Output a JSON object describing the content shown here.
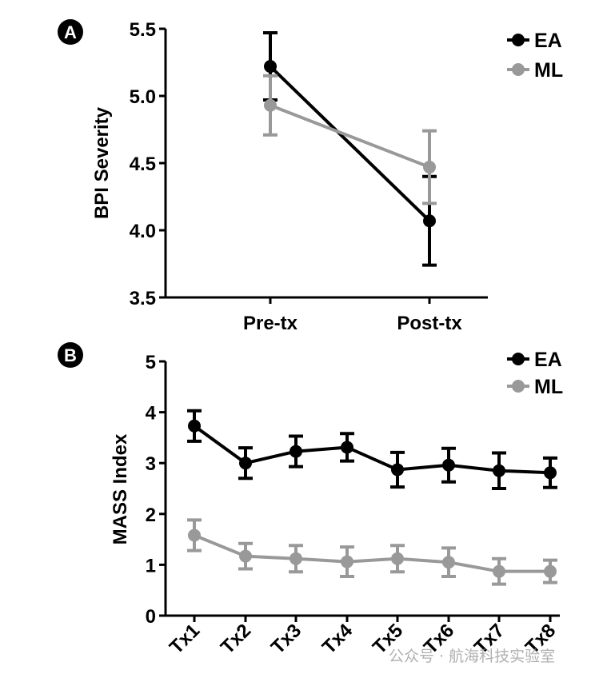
{
  "chart_data": [
    {
      "panel": "A",
      "type": "line",
      "ylabel": "BPI Severity",
      "xlabel": "",
      "categories": [
        "Pre-tx",
        "Post-tx"
      ],
      "ylim": [
        3.5,
        5.5
      ],
      "yticks": [
        "3.5",
        "4.0",
        "4.5",
        "5.0",
        "5.5"
      ],
      "ytick_values": [
        3.5,
        4.0,
        4.5,
        5.0,
        5.5
      ],
      "legend_position": "top-right",
      "series": [
        {
          "name": "EA",
          "color": "#000000",
          "values": [
            5.22,
            4.07
          ],
          "errors": [
            0.25,
            0.33
          ]
        },
        {
          "name": "ML",
          "color": "#999999",
          "values": [
            4.93,
            4.47
          ],
          "errors": [
            0.22,
            0.27
          ]
        }
      ]
    },
    {
      "panel": "B",
      "type": "line",
      "ylabel": "MASS Index",
      "xlabel": "",
      "categories": [
        "Tx1",
        "Tx2",
        "Tx3",
        "Tx4",
        "Tx5",
        "Tx6",
        "Tx7",
        "Tx8"
      ],
      "ylim": [
        0,
        5
      ],
      "yticks": [
        "0",
        "1",
        "2",
        "3",
        "4",
        "5"
      ],
      "ytick_values": [
        0,
        1,
        2,
        3,
        4,
        5
      ],
      "legend_position": "top-right",
      "series": [
        {
          "name": "EA",
          "color": "#000000",
          "values": [
            3.73,
            3.0,
            3.23,
            3.31,
            2.87,
            2.96,
            2.85,
            2.81
          ],
          "errors": [
            0.3,
            0.3,
            0.3,
            0.27,
            0.34,
            0.33,
            0.35,
            0.29
          ]
        },
        {
          "name": "ML",
          "color": "#999999",
          "values": [
            1.58,
            1.17,
            1.12,
            1.06,
            1.12,
            1.05,
            0.87,
            0.87
          ],
          "errors": [
            0.3,
            0.25,
            0.26,
            0.29,
            0.26,
            0.28,
            0.25,
            0.22
          ]
        }
      ]
    }
  ],
  "watermark": "公众号 · 航海科技实验室"
}
